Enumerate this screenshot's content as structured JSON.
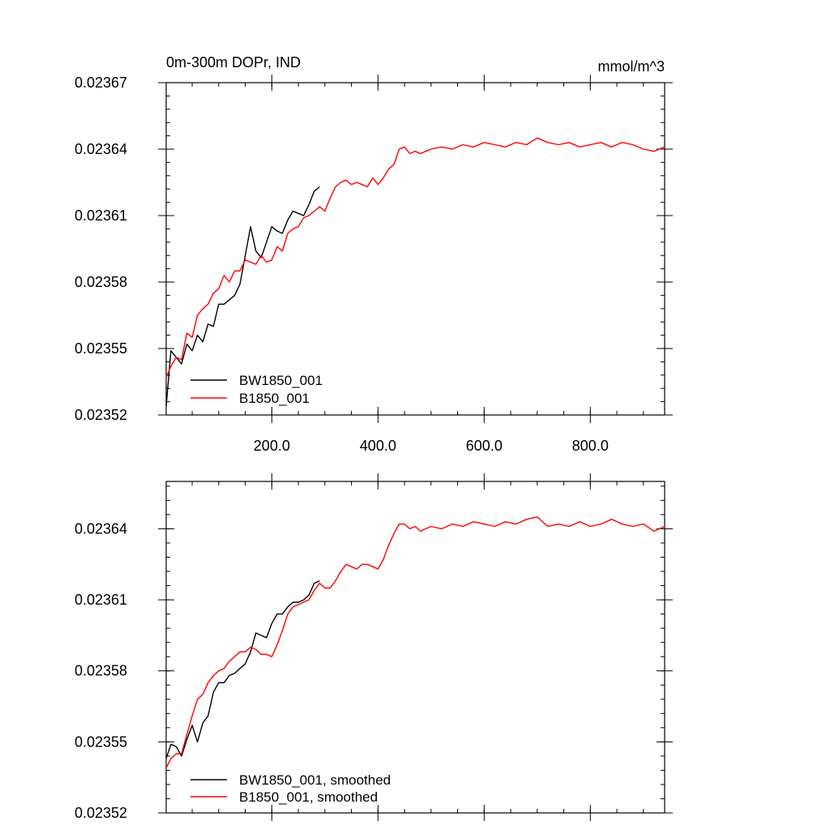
{
  "chart_data": [
    {
      "type": "line",
      "title_left": "0m-300m DOPr, IND",
      "title_right": "mmol/m^3",
      "xlim": [
        1,
        940
      ],
      "ylim": [
        0.02352,
        0.02367
      ],
      "x_ticks": [
        200,
        400,
        600,
        800
      ],
      "x_tick_labels": [
        "200.0",
        "400.0",
        "600.0",
        "800.0"
      ],
      "y_ticks": [
        0.02352,
        0.02355,
        0.02358,
        0.02361,
        0.02364,
        0.02367
      ],
      "y_tick_labels": [
        "0.02352",
        "0.02355",
        "0.02358",
        "0.02361",
        "0.02364",
        "0.02367"
      ],
      "legend_position": "bottom-left",
      "series": [
        {
          "name": "BW1850_001",
          "color": "#000000",
          "x": [
            1,
            10,
            20,
            30,
            40,
            50,
            60,
            70,
            80,
            90,
            100,
            110,
            120,
            130,
            140,
            150,
            160,
            170,
            180,
            190,
            200,
            210,
            220,
            230,
            240,
            250,
            260,
            270,
            280,
            290
          ],
          "y": [
            0.023524,
            0.023549,
            0.023546,
            0.023543,
            0.023552,
            0.023549,
            0.023556,
            0.023553,
            0.023561,
            0.02356,
            0.02357,
            0.02357,
            0.023572,
            0.023574,
            0.023579,
            0.023592,
            0.023605,
            0.023594,
            0.023591,
            0.023598,
            0.023605,
            0.023603,
            0.023602,
            0.023608,
            0.023612,
            0.023611,
            0.02361,
            0.023615,
            0.023621,
            0.023623
          ]
        },
        {
          "name": "B1850_001",
          "color": "#ff0000",
          "x": [
            1,
            10,
            20,
            30,
            40,
            50,
            60,
            70,
            80,
            90,
            100,
            110,
            120,
            130,
            140,
            150,
            160,
            170,
            180,
            190,
            200,
            210,
            220,
            230,
            240,
            250,
            260,
            270,
            280,
            290,
            300,
            310,
            320,
            330,
            340,
            350,
            360,
            370,
            380,
            390,
            400,
            410,
            420,
            430,
            440,
            450,
            460,
            470,
            480,
            490,
            500,
            520,
            540,
            560,
            580,
            600,
            620,
            640,
            660,
            680,
            700,
            720,
            740,
            760,
            780,
            800,
            820,
            840,
            860,
            880,
            900,
            920,
            940
          ],
          "y": [
            0.023537,
            0.023542,
            0.023546,
            0.023545,
            0.023557,
            0.023555,
            0.023565,
            0.023568,
            0.02357,
            0.023575,
            0.023577,
            0.023583,
            0.02358,
            0.023585,
            0.023585,
            0.02359,
            0.023589,
            0.023588,
            0.023592,
            0.023589,
            0.02359,
            0.023596,
            0.023594,
            0.023602,
            0.023604,
            0.023605,
            0.023609,
            0.02361,
            0.023612,
            0.023614,
            0.023612,
            0.023618,
            0.023623,
            0.023625,
            0.023626,
            0.023624,
            0.023625,
            0.023624,
            0.023623,
            0.023627,
            0.023624,
            0.023627,
            0.023631,
            0.023633,
            0.02364,
            0.023641,
            0.023638,
            0.023639,
            0.023638,
            0.023639,
            0.02364,
            0.023641,
            0.02364,
            0.023642,
            0.023641,
            0.023643,
            0.023642,
            0.023641,
            0.023643,
            0.023642,
            0.023645,
            0.023643,
            0.023642,
            0.023643,
            0.023641,
            0.023642,
            0.023643,
            0.023641,
            0.023643,
            0.023642,
            0.02364,
            0.023639,
            0.023641
          ]
        }
      ]
    },
    {
      "type": "line",
      "title_left": "",
      "title_right": "",
      "xlim": [
        1,
        940
      ],
      "ylim": [
        0.02352,
        0.02366
      ],
      "x_ticks": [
        200,
        400,
        600,
        800
      ],
      "x_tick_labels": [],
      "y_ticks": [
        0.02352,
        0.02355,
        0.02358,
        0.02361,
        0.02364
      ],
      "y_tick_labels": [
        "0.02352",
        "0.02355",
        "0.02358",
        "0.02361",
        "0.02364"
      ],
      "legend_position": "bottom-left",
      "series": [
        {
          "name": "BW1850_001, smoothed",
          "color": "#000000",
          "x": [
            1,
            10,
            20,
            30,
            40,
            50,
            60,
            70,
            80,
            90,
            100,
            110,
            120,
            130,
            140,
            150,
            160,
            170,
            180,
            190,
            200,
            210,
            220,
            230,
            240,
            250,
            260,
            270,
            280,
            290
          ],
          "y": [
            0.023543,
            0.023549,
            0.023548,
            0.023544,
            0.023551,
            0.023557,
            0.02355,
            0.023558,
            0.023561,
            0.023571,
            0.023575,
            0.023575,
            0.023578,
            0.023579,
            0.023581,
            0.023583,
            0.023588,
            0.023596,
            0.023595,
            0.023594,
            0.0236,
            0.023604,
            0.023604,
            0.023607,
            0.023609,
            0.023609,
            0.02361,
            0.023612,
            0.023617,
            0.023618
          ]
        },
        {
          "name": "B1850_001, smoothed",
          "color": "#ff0000",
          "x": [
            1,
            10,
            20,
            30,
            40,
            50,
            60,
            70,
            80,
            90,
            100,
            110,
            120,
            130,
            140,
            150,
            160,
            170,
            180,
            190,
            200,
            210,
            220,
            230,
            240,
            250,
            260,
            270,
            280,
            290,
            300,
            310,
            320,
            330,
            340,
            350,
            360,
            370,
            380,
            390,
            400,
            410,
            420,
            430,
            440,
            450,
            460,
            470,
            480,
            490,
            500,
            520,
            540,
            560,
            580,
            600,
            620,
            640,
            660,
            680,
            700,
            720,
            740,
            760,
            780,
            800,
            820,
            840,
            860,
            880,
            900,
            920,
            940
          ],
          "y": [
            0.023539,
            0.023543,
            0.023545,
            0.023545,
            0.023553,
            0.023561,
            0.023568,
            0.02357,
            0.023575,
            0.023578,
            0.02358,
            0.023581,
            0.023584,
            0.023586,
            0.023588,
            0.023588,
            0.02359,
            0.023589,
            0.023587,
            0.023587,
            0.023586,
            0.023591,
            0.023597,
            0.023604,
            0.023607,
            0.023608,
            0.023609,
            0.02361,
            0.023614,
            0.023617,
            0.023615,
            0.023615,
            0.023618,
            0.023622,
            0.023625,
            0.023624,
            0.023623,
            0.023625,
            0.023625,
            0.023624,
            0.023623,
            0.023627,
            0.023633,
            0.023638,
            0.023642,
            0.023642,
            0.02364,
            0.023641,
            0.023639,
            0.02364,
            0.023641,
            0.02364,
            0.023642,
            0.023641,
            0.023643,
            0.023642,
            0.023641,
            0.023643,
            0.023642,
            0.023644,
            0.023645,
            0.023641,
            0.023642,
            0.023641,
            0.023643,
            0.023641,
            0.023642,
            0.023644,
            0.023642,
            0.023641,
            0.023642,
            0.023639,
            0.023641
          ]
        }
      ]
    }
  ]
}
